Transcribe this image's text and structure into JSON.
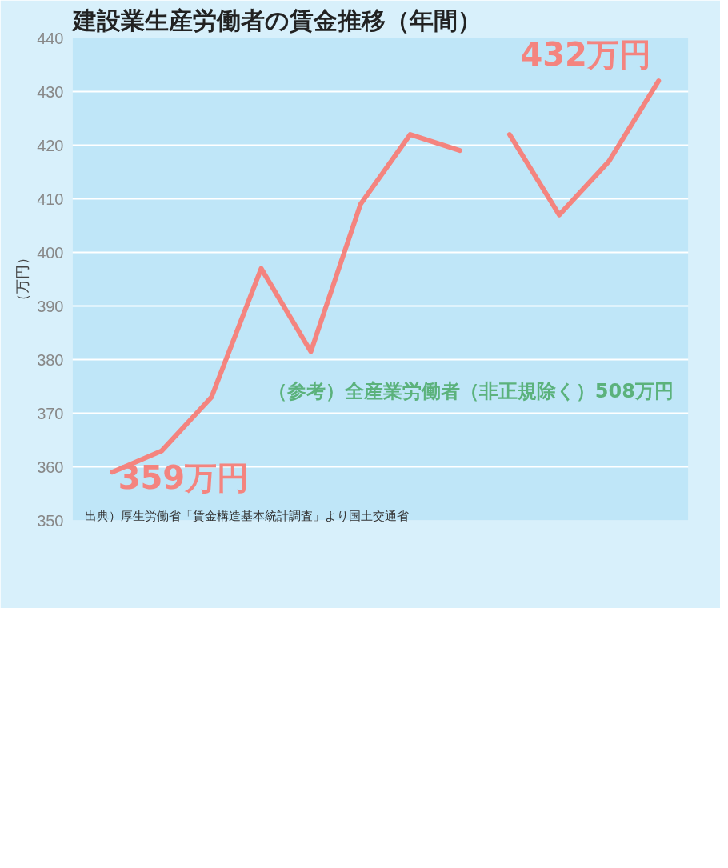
{
  "chart_data": {
    "type": "line",
    "title": "建設業生産労働者の賃金推移（年間）",
    "ylabel": "（万円）",
    "categories": [
      null,
      null,
      null,
      null,
      null,
      null,
      null,
      null,
      null,
      null,
      null,
      null
    ],
    "series": [
      {
        "color": "#f4847f",
        "values": [
          359,
          363,
          373,
          397,
          381.5,
          409,
          422,
          419,
          null,
          null,
          null,
          null
        ],
        "value_labels": [
          "359万円",
          null,
          null,
          null,
          null,
          null,
          null,
          null,
          null,
          null,
          null,
          null
        ]
      },
      {
        "color": "#f4847f",
        "values": [
          null,
          null,
          null,
          null,
          null,
          null,
          null,
          null,
          422,
          407,
          417,
          432
        ],
        "value_labels": [
          null,
          null,
          null,
          null,
          null,
          null,
          null,
          null,
          null,
          null,
          null,
          "432万円"
        ]
      }
    ],
    "ylim": [
      350,
      440
    ],
    "yticks": [
      350,
      360,
      370,
      380,
      390,
      400,
      410,
      420,
      430,
      440
    ],
    "grid": "y",
    "tick_labels": "y",
    "annotations": [
      "（参考）全産業労働者（非正規除く）508万円",
      "出典）厚生労働省「賃金構造基本統計調査」より国土交通省"
    ]
  }
}
